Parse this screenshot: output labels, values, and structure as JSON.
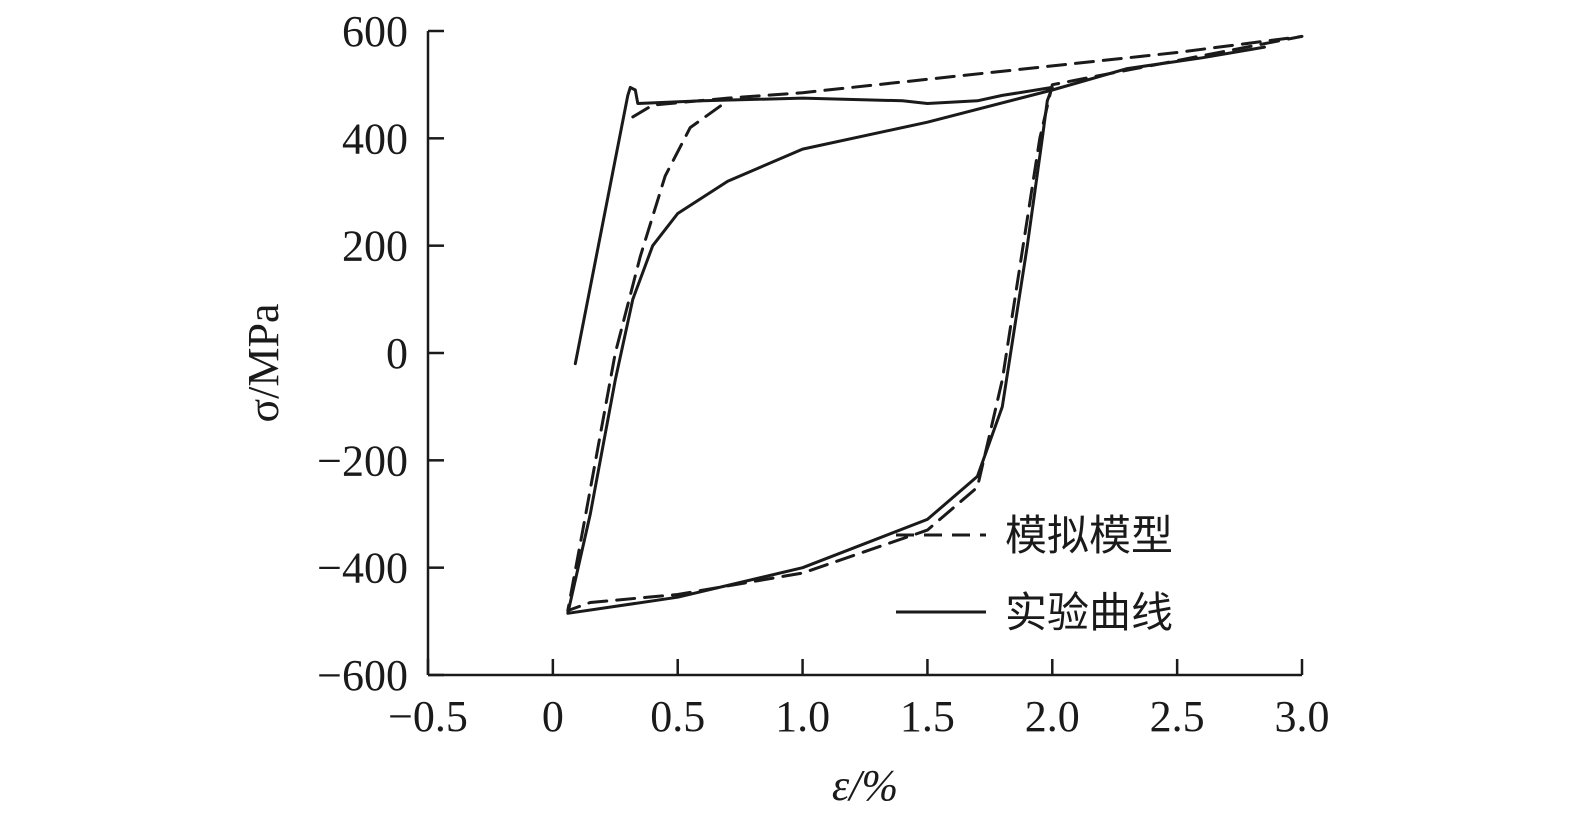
{
  "chart_data": {
    "type": "line",
    "xlabel": "ε/%",
    "ylabel": "σ/MPa",
    "xlim": [
      -0.5,
      3.0
    ],
    "ylim": [
      -600,
      600
    ],
    "x_ticks": [
      {
        "value": -0.5,
        "label": "−0.5"
      },
      {
        "value": 0,
        "label": "0"
      },
      {
        "value": 0.5,
        "label": "0.5"
      },
      {
        "value": 1.0,
        "label": "1.0"
      },
      {
        "value": 1.5,
        "label": "1.5"
      },
      {
        "value": 2.0,
        "label": "2.0"
      },
      {
        "value": 2.5,
        "label": "2.5"
      },
      {
        "value": 3.0,
        "label": "3.0"
      }
    ],
    "y_ticks": [
      {
        "value": 600,
        "label": "600"
      },
      {
        "value": 400,
        "label": "400"
      },
      {
        "value": 200,
        "label": "200"
      },
      {
        "value": 0,
        "label": "0"
      },
      {
        "value": -200,
        "label": "−200"
      },
      {
        "value": -400,
        "label": "−400"
      },
      {
        "value": -600,
        "label": "−600"
      }
    ],
    "legend": {
      "position": "bottom-right"
    },
    "grid": false,
    "series": [
      {
        "name": "模拟模型",
        "style": "dashed",
        "color": "#1a1a1a",
        "points": [
          [
            0.32,
            440
          ],
          [
            0.4,
            462
          ],
          [
            0.7,
            475
          ],
          [
            1.0,
            485
          ],
          [
            1.5,
            510
          ],
          [
            2.0,
            535
          ],
          [
            2.5,
            560
          ],
          [
            3.0,
            590
          ],
          [
            2.0,
            500
          ],
          [
            1.95,
            400
          ],
          [
            1.9,
            250
          ],
          [
            1.85,
            100
          ],
          [
            1.8,
            -50
          ],
          [
            1.75,
            -150
          ],
          [
            1.7,
            -250
          ],
          [
            1.5,
            -330
          ],
          [
            1.0,
            -410
          ],
          [
            0.5,
            -450
          ],
          [
            0.15,
            -465
          ],
          [
            0.06,
            -480
          ],
          [
            0.12,
            -330
          ],
          [
            0.25,
            0
          ],
          [
            0.35,
            180
          ],
          [
            0.45,
            330
          ],
          [
            0.55,
            420
          ],
          [
            0.7,
            470
          ]
        ]
      },
      {
        "name": "实验曲线",
        "style": "solid",
        "color": "#1a1a1a",
        "points": [
          [
            0.09,
            -20
          ],
          [
            0.3,
            480
          ],
          [
            0.31,
            495
          ],
          [
            0.33,
            490
          ],
          [
            0.34,
            465
          ],
          [
            0.6,
            470
          ],
          [
            1.0,
            475
          ],
          [
            1.4,
            470
          ],
          [
            1.5,
            465
          ],
          [
            1.7,
            470
          ],
          [
            1.8,
            480
          ],
          [
            2.0,
            495
          ],
          [
            1.98,
            470
          ],
          [
            1.96,
            400
          ],
          [
            1.93,
            300
          ],
          [
            1.9,
            200
          ],
          [
            1.85,
            50
          ],
          [
            1.8,
            -100
          ],
          [
            1.7,
            -230
          ],
          [
            1.5,
            -310
          ],
          [
            1.0,
            -400
          ],
          [
            0.5,
            -455
          ],
          [
            0.06,
            -485
          ],
          [
            0.15,
            -300
          ],
          [
            0.25,
            -50
          ],
          [
            0.32,
            100
          ],
          [
            0.4,
            200
          ],
          [
            0.5,
            260
          ],
          [
            0.7,
            320
          ],
          [
            1.0,
            380
          ],
          [
            1.5,
            430
          ],
          [
            2.0,
            490
          ],
          [
            2.3,
            530
          ],
          [
            2.6,
            550
          ],
          [
            2.85,
            570
          ]
        ]
      }
    ]
  }
}
